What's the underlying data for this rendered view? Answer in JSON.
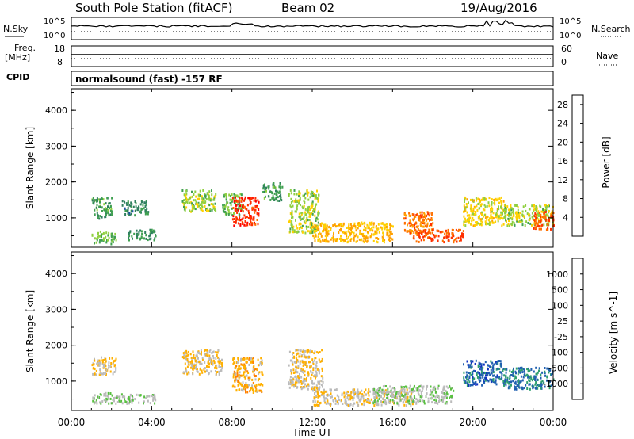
{
  "header": {
    "station": "South Pole Station (fitACF)",
    "beam": "Beam 02",
    "date": "19/Aug/2016"
  },
  "strip_panels": {
    "nsky_label": "N.Sky",
    "nsky_ticks": [
      "10^5",
      "10^0"
    ],
    "nsearch_label": "N.Search",
    "freq_label": "Freq.",
    "freq_unit": "[MHz]",
    "freq_ticks": [
      "18",
      "8"
    ],
    "nave_label": "Nave",
    "nave_ticks": [
      "60",
      "0"
    ],
    "cpid_label": "CPID",
    "cpid_text": "normalsound (fast) -157 RF"
  },
  "colors": {
    "power_scale": [
      "#0000ff",
      "#1f4fa8",
      "#2f7f5f",
      "#3fa050",
      "#8fcf3f",
      "#ffd000",
      "#ffa000",
      "#ff7000",
      "#ff3000",
      "#ff0000"
    ],
    "velocity_scale": [
      "#ff0000",
      "#ff5000",
      "#ff8000",
      "#ffb000",
      "#bbbbbb",
      "#bbbbbb",
      "#58c040",
      "#2f9f6f",
      "#2060b0",
      "#1030c0"
    ]
  },
  "chart_data": [
    {
      "type": "heatmap",
      "title": "",
      "xlabel": "",
      "ylabel": "Slant Range [km]",
      "x_ticks": [
        "00:00",
        "04:00",
        "08:00",
        "12:00",
        "16:00",
        "20:00",
        "00:00"
      ],
      "x_range_hours": [
        0,
        24
      ],
      "y_ticks": [
        "1000",
        "2000",
        "3000",
        "4000"
      ],
      "ylim": [
        180,
        4600
      ],
      "colorbar": {
        "label": "Power [dB]",
        "ticks": [
          "4",
          "8",
          "12",
          "16",
          "20",
          "24",
          "28"
        ],
        "range": [
          0,
          30
        ]
      },
      "scatter_regions": [
        {
          "t": [
            1.0,
            2.2
          ],
          "r": [
            300,
            650
          ],
          "value": 12
        },
        {
          "t": [
            1.0,
            2.0
          ],
          "r": [
            1000,
            1600
          ],
          "value": 10
        },
        {
          "t": [
            2.8,
            4.2
          ],
          "r": [
            400,
            700
          ],
          "value": 9
        },
        {
          "t": [
            2.5,
            3.8
          ],
          "r": [
            1100,
            1500
          ],
          "value": 8
        },
        {
          "t": [
            5.5,
            7.2
          ],
          "r": [
            1200,
            1800
          ],
          "value": 14
        },
        {
          "t": [
            7.5,
            8.5
          ],
          "r": [
            1100,
            1700
          ],
          "value": 12
        },
        {
          "t": [
            8.0,
            9.3
          ],
          "r": [
            800,
            1600
          ],
          "value": 26
        },
        {
          "t": [
            9.5,
            10.5
          ],
          "r": [
            1500,
            2000
          ],
          "value": 10
        },
        {
          "t": [
            10.8,
            12.3
          ],
          "r": [
            600,
            1800
          ],
          "value": 14
        },
        {
          "t": [
            12.0,
            16.0
          ],
          "r": [
            350,
            900
          ],
          "value": 18
        },
        {
          "t": [
            16.5,
            18.0
          ],
          "r": [
            600,
            1200
          ],
          "value": 22
        },
        {
          "t": [
            17.0,
            19.5
          ],
          "r": [
            350,
            700
          ],
          "value": 24
        },
        {
          "t": [
            19.5,
            21.5
          ],
          "r": [
            800,
            1600
          ],
          "value": 16
        },
        {
          "t": [
            21.5,
            24.0
          ],
          "r": [
            800,
            1400
          ],
          "value": 14
        },
        {
          "t": [
            23.0,
            24.0
          ],
          "r": [
            700,
            1200
          ],
          "value": 24
        }
      ]
    },
    {
      "type": "heatmap",
      "title": "",
      "xlabel": "Time UT",
      "ylabel": "Slant Range [km]",
      "x_ticks": [
        "00:00",
        "04:00",
        "08:00",
        "12:00",
        "16:00",
        "20:00",
        "00:00"
      ],
      "x_range_hours": [
        0,
        24
      ],
      "y_ticks": [
        "1000",
        "2000",
        "3000",
        "4000"
      ],
      "ylim": [
        180,
        4600
      ],
      "colorbar": {
        "label": "Velocity [m s^-1]",
        "ticks": [
          "1000",
          "500",
          "100",
          "25",
          "-25",
          "-100",
          "-500",
          "-1000"
        ],
        "range": [
          -1000,
          1000
        ]
      },
      "scatter_regions": [
        {
          "t": [
            1.0,
            2.2
          ],
          "r": [
            1200,
            1700
          ],
          "value": -200
        },
        {
          "t": [
            1.0,
            2.5
          ],
          "r": [
            400,
            700
          ],
          "value": 150
        },
        {
          "t": [
            2.5,
            4.2
          ],
          "r": [
            400,
            650
          ],
          "value": 120
        },
        {
          "t": [
            5.5,
            7.5
          ],
          "r": [
            1200,
            1900
          ],
          "value": -200
        },
        {
          "t": [
            8.0,
            9.5
          ],
          "r": [
            700,
            1700
          ],
          "value": -300
        },
        {
          "t": [
            10.8,
            12.5
          ],
          "r": [
            800,
            1900
          ],
          "value": -200
        },
        {
          "t": [
            12.0,
            17.0
          ],
          "r": [
            350,
            800
          ],
          "value": -150
        },
        {
          "t": [
            15.0,
            19.0
          ],
          "r": [
            400,
            900
          ],
          "value": 150
        },
        {
          "t": [
            19.5,
            21.5
          ],
          "r": [
            900,
            1600
          ],
          "value": 700
        },
        {
          "t": [
            21.5,
            24.0
          ],
          "r": [
            800,
            1400
          ],
          "value": 600
        }
      ]
    }
  ]
}
